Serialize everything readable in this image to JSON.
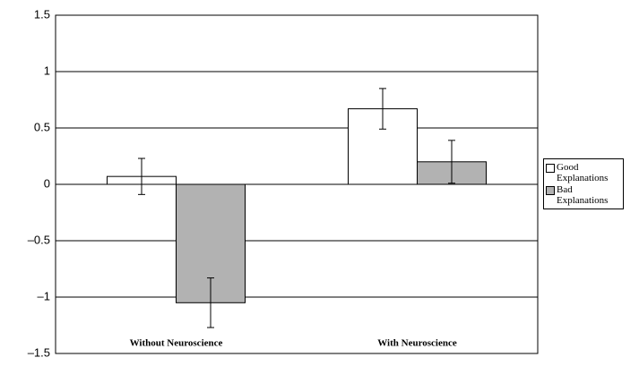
{
  "chart_data": {
    "type": "bar",
    "categories": [
      "Without Neuroscience",
      "With Neuroscience"
    ],
    "series": [
      {
        "name": "Good Explanations",
        "color": "#ffffff",
        "values": [
          0.07,
          0.67
        ],
        "errors": [
          0.16,
          0.18
        ]
      },
      {
        "name": "Bad Explanations",
        "color": "#b2b2b2",
        "values": [
          -1.05,
          0.2
        ],
        "errors": [
          0.22,
          0.19
        ]
      }
    ],
    "ylim": [
      -1.5,
      1.5
    ],
    "yticks": [
      {
        "value": -1.5,
        "label": "–1.5"
      },
      {
        "value": -1,
        "label": "–1"
      },
      {
        "value": -0.5,
        "label": "–0.5"
      },
      0,
      0.5,
      1,
      1.5
    ],
    "grid": true
  }
}
